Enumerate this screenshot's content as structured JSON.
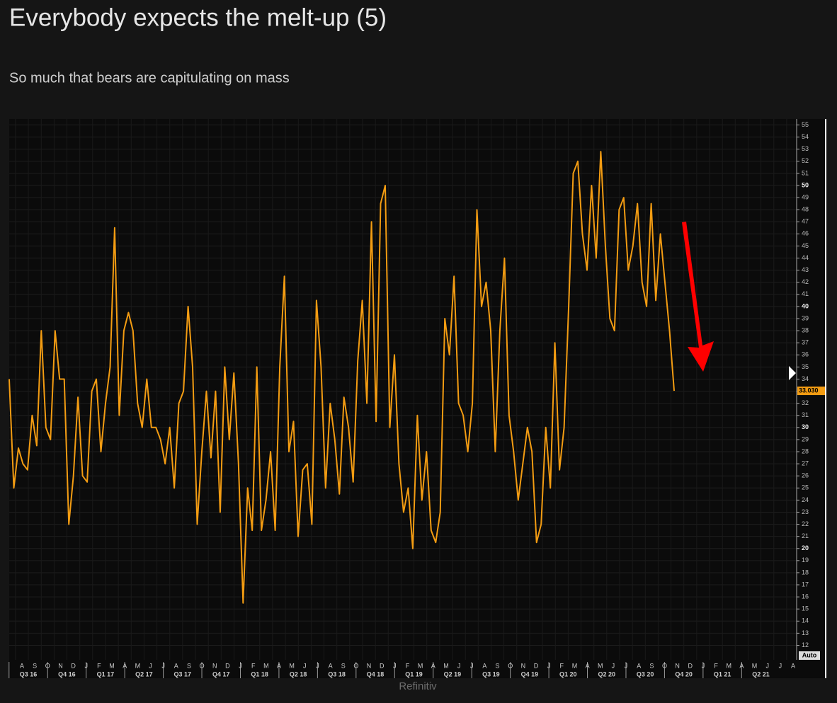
{
  "chart_data": {
    "type": "line",
    "title": "Everybody expects the melt-up (5)",
    "subtitle": "So much that bears are capitulating on mass",
    "source": "Refinitiv",
    "months": [
      "A",
      "S",
      "O",
      "N",
      "D",
      "J",
      "F",
      "M",
      "A",
      "M",
      "J",
      "J",
      "A",
      "S",
      "O",
      "N",
      "D",
      "J",
      "F",
      "M",
      "A",
      "M",
      "J",
      "J",
      "A",
      "S",
      "O",
      "N",
      "D",
      "J",
      "F",
      "M",
      "A",
      "M",
      "J",
      "J",
      "A",
      "S",
      "O",
      "N",
      "D",
      "J",
      "F",
      "M",
      "A",
      "M",
      "J",
      "J",
      "A",
      "S",
      "O",
      "N",
      "D",
      "J",
      "F",
      "M",
      "A",
      "M",
      "J",
      "J",
      "A"
    ],
    "quarters": [
      "Q3 16",
      "Q4 16",
      "Q1 17",
      "Q2 17",
      "Q3 17",
      "Q4 17",
      "Q1 18",
      "Q2 18",
      "Q3 18",
      "Q4 18",
      "Q1 19",
      "Q2 19",
      "Q3 19",
      "Q4 19",
      "Q1 20",
      "Q2 20",
      "Q3 20",
      "Q4 20",
      "Q1 21",
      "Q2 21"
    ],
    "series": [
      {
        "color": "#f39c12",
        "values": [
          34,
          25,
          28.3,
          27,
          26.5,
          31,
          28.5,
          38,
          30,
          29,
          38,
          34,
          34,
          22,
          26,
          32.5,
          26,
          25.5,
          33,
          34,
          28,
          32,
          35,
          46.5,
          31,
          38,
          39.5,
          38,
          32,
          30,
          34,
          30,
          30,
          29,
          27,
          30,
          25,
          32,
          33,
          40,
          35,
          22,
          28,
          33,
          27.5,
          33,
          23,
          35,
          29,
          34.5,
          27,
          15.5,
          25,
          21.5,
          35,
          21.5,
          24,
          28,
          21.5,
          35,
          42.5,
          28,
          30.5,
          21,
          26.5,
          27,
          22,
          40.5,
          35,
          25,
          32,
          29,
          24.5,
          32.5,
          30,
          25.5,
          35.5,
          40.5,
          32,
          47,
          30.5,
          48.5,
          50,
          30,
          36,
          27,
          23,
          25,
          20,
          31,
          24,
          28,
          21.5,
          20.5,
          23,
          39,
          36,
          42.5,
          32,
          31,
          28,
          32,
          48,
          40,
          42,
          38,
          28,
          38,
          44,
          31,
          28,
          24,
          27,
          30,
          28,
          20.5,
          22,
          30,
          25,
          37,
          26.5,
          30,
          40,
          51,
          52,
          46,
          43,
          50,
          44,
          52.8,
          45,
          39,
          38,
          48,
          49,
          43,
          45,
          48.5,
          42,
          40,
          48.5,
          40.5,
          46,
          42,
          38,
          33.03
        ]
      }
    ],
    "last_label": "33.030",
    "auto_label": "Auto",
    "ylim": [
      10.8,
      55.5
    ],
    "yticks": [
      12,
      13,
      14,
      15,
      16,
      17,
      18,
      19,
      20,
      21,
      22,
      23,
      24,
      25,
      26,
      27,
      28,
      29,
      30,
      31,
      32,
      33,
      34,
      35,
      36,
      37,
      38,
      39,
      40,
      41,
      42,
      43,
      44,
      45,
      46,
      47,
      48,
      49,
      50,
      51,
      52,
      53,
      54,
      55
    ],
    "grid": true
  }
}
